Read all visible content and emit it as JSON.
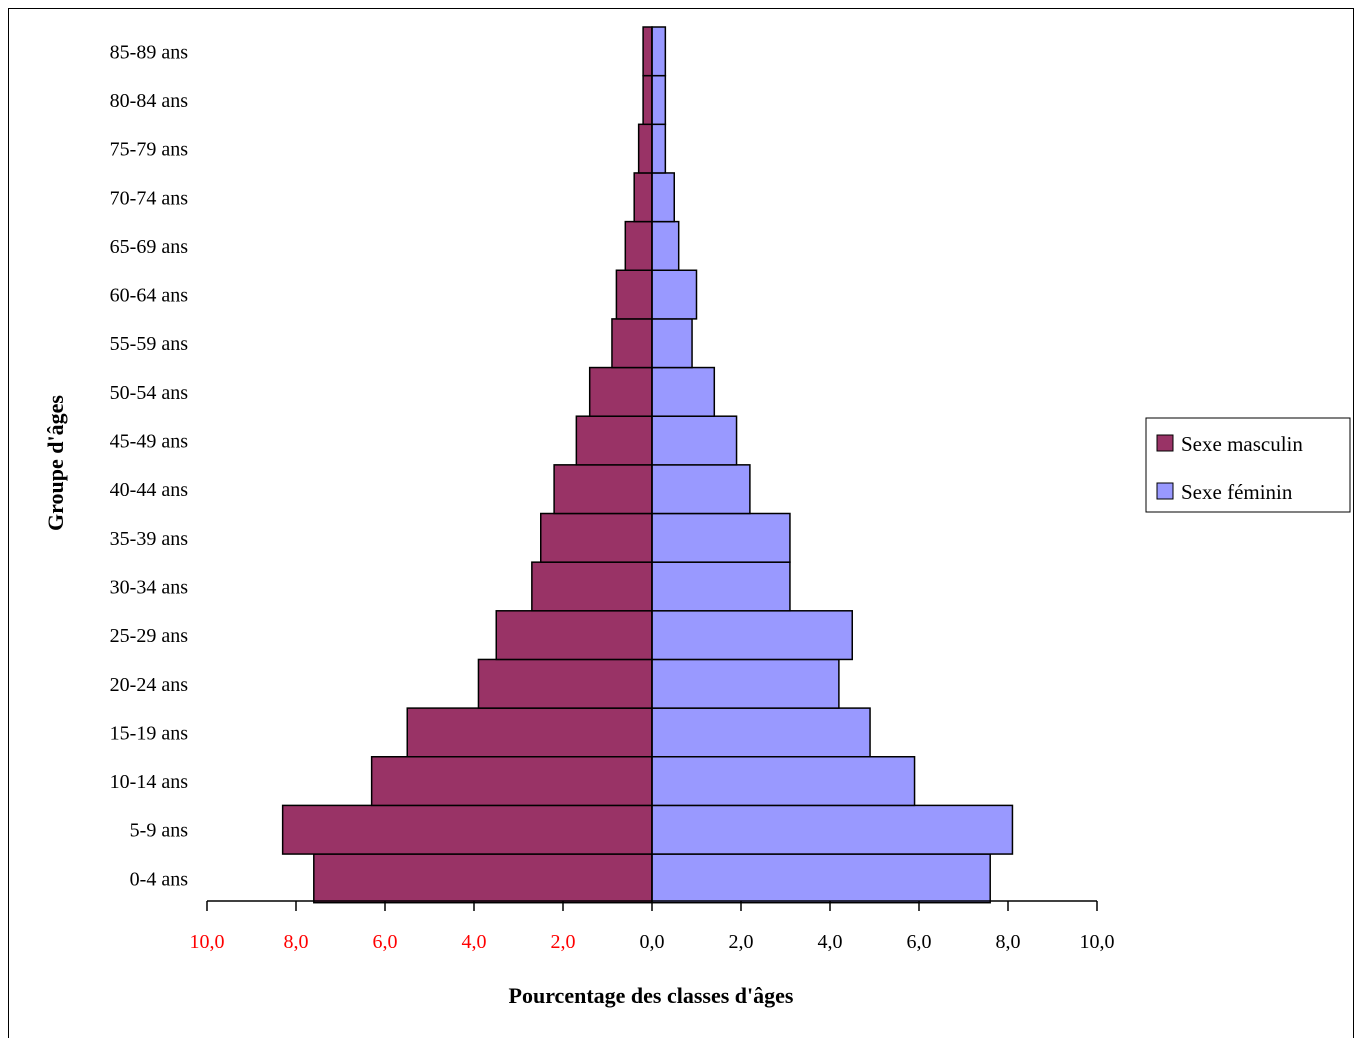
{
  "chart_data": {
    "type": "bar",
    "orientation": "horizontal",
    "subtype": "population-pyramid",
    "categories": [
      "0-4 ans",
      "5-9 ans",
      "10-14 ans",
      "15-19 ans",
      "20-24 ans",
      "25-29 ans",
      "30-34 ans",
      "35-39 ans",
      "40-44 ans",
      "45-49 ans",
      "50-54 ans",
      "55-59 ans",
      "60-64 ans",
      "65-69 ans",
      "70-74 ans",
      "75-79 ans",
      "80-84 ans",
      "85-89 ans"
    ],
    "series": [
      {
        "name": "Sexe masculin",
        "side": "left",
        "color": "#993366",
        "values": [
          7.6,
          8.3,
          6.3,
          5.5,
          3.9,
          3.5,
          2.7,
          2.5,
          2.2,
          1.7,
          1.4,
          0.9,
          0.8,
          0.6,
          0.4,
          0.3,
          0.2,
          0.2
        ]
      },
      {
        "name": "Sexe féminin",
        "side": "right",
        "color": "#9999FF",
        "values": [
          7.6,
          8.1,
          5.9,
          4.9,
          4.2,
          4.5,
          3.1,
          3.1,
          2.2,
          1.9,
          1.4,
          0.9,
          1.0,
          0.6,
          0.5,
          0.3,
          0.3,
          0.3
        ]
      }
    ],
    "xlabel": "Pourcentage des classes d'âges",
    "ylabel": "Groupe d'âges",
    "xlim": [
      -10,
      10
    ],
    "ticks": [
      {
        "value": -10,
        "label": "10,0",
        "color": "#FF0000"
      },
      {
        "value": -8,
        "label": "8,0",
        "color": "#FF0000"
      },
      {
        "value": -6,
        "label": "6,0",
        "color": "#FF0000"
      },
      {
        "value": -4,
        "label": "4,0",
        "color": "#FF0000"
      },
      {
        "value": -2,
        "label": "2,0",
        "color": "#FF0000"
      },
      {
        "value": 0,
        "label": "0,0",
        "color": "#000000"
      },
      {
        "value": 2,
        "label": "2,0",
        "color": "#000000"
      },
      {
        "value": 4,
        "label": "4,0",
        "color": "#000000"
      },
      {
        "value": 6,
        "label": "6,0",
        "color": "#000000"
      },
      {
        "value": 8,
        "label": "8,0",
        "color": "#000000"
      },
      {
        "value": 10,
        "label": "10,0",
        "color": "#000000"
      }
    ],
    "grid": false,
    "legend": {
      "placement": "right",
      "entries": [
        "Sexe masculin",
        "Sexe féminin"
      ]
    }
  }
}
